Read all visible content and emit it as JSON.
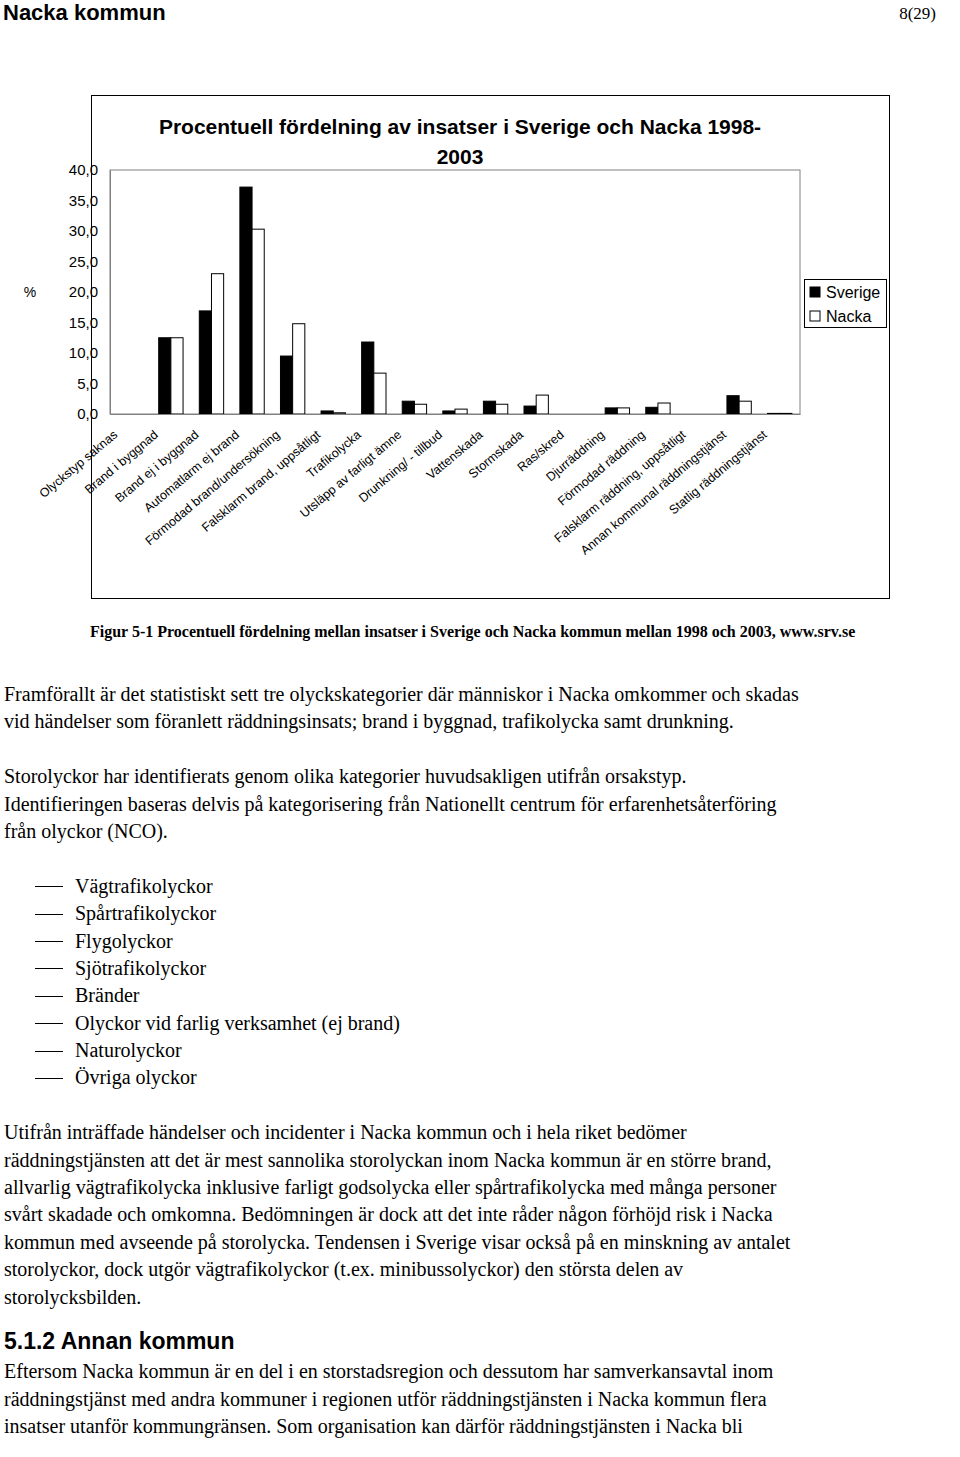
{
  "header": {
    "title": "Nacka kommun",
    "page": "8(29)"
  },
  "chart_data": {
    "type": "bar",
    "title": "Procentuell fördelning av insatser i Sverige och Nacka 1998-2003",
    "y_label": "%",
    "categories": [
      "Olyckstyp saknas",
      "Brand i byggnad",
      "Brand ej i byggnad",
      "Automatlarm ej brand",
      "Förmodad brand/undersökning",
      "Falsklarm brand, uppsåtligt",
      "Trafikolycka",
      "Utsläpp av farligt ämne",
      "Drunkning/ - tillbud",
      "Vattenskada",
      "Stormskada",
      "Ras/skred",
      "Djurräddning",
      "Förmodad räddning",
      "Falsklarm räddning, uppsåtligt",
      "Annan kommunal räddningstjänst",
      "Statlig räddningstjänst"
    ],
    "series": [
      {
        "name": "Sverige",
        "color": "#000000",
        "values": [
          0,
          12.5,
          16.9,
          37.2,
          9.5,
          0.5,
          11.8,
          2.1,
          0.5,
          2.1,
          1.3,
          0,
          1.0,
          1.1,
          0,
          3.0,
          0.1
        ]
      },
      {
        "name": "Nacka",
        "color": "#ffffff",
        "values": [
          0,
          12.5,
          23.0,
          30.3,
          14.8,
          0.2,
          6.7,
          1.6,
          0.8,
          1.6,
          3.1,
          0,
          1.0,
          1.8,
          0,
          2.1,
          0.1
        ]
      }
    ],
    "ylim": [
      0,
      40
    ],
    "yticks": [
      {
        "value": 0,
        "label": "0,0"
      },
      {
        "value": 5,
        "label": "5,0"
      },
      {
        "value": 10,
        "label": "10,0"
      },
      {
        "value": 15,
        "label": "15,0"
      },
      {
        "value": 20,
        "label": "20,0"
      },
      {
        "value": 25,
        "label": "25,0"
      },
      {
        "value": 30,
        "label": "30,0"
      },
      {
        "value": 35,
        "label": "35,0"
      },
      {
        "value": 40,
        "label": "40,0"
      }
    ],
    "legend": "right"
  },
  "caption": "Figur 5-1 Procentuell fördelning mellan insatser i Sverige och Nacka kommun mellan 1998 och 2003, www.srv.se",
  "body": [
    {
      "type": "paragraph",
      "lines": [
        "Framförallt är det statistiskt sett tre olyckskategorier där människor i Nacka omkommer och skadas",
        "vid händelser som föranlett räddningsinsats; brand i byggnad, trafikolycka samt drunkning."
      ]
    },
    {
      "type": "paragraph",
      "lines": [
        "Storolyckor har identifierats genom olika kategorier huvudsakligen utifrån orsakstyp.",
        "Identifieringen baseras delvis på kategorisering från Nationellt centrum för erfarenhetsåterföring",
        "från olyckor (NCO)."
      ]
    },
    {
      "type": "list",
      "items": [
        "Vägtrafikolyckor",
        "Spårtrafikolyckor",
        "Flygolyckor",
        "Sjötrafikolyckor",
        "Bränder",
        "Olyckor vid farlig verksamhet (ej brand)",
        "Naturolyckor",
        "Övriga olyckor"
      ]
    },
    {
      "type": "paragraph",
      "lines": [
        "Utifrån inträffade händelser och incidenter i Nacka kommun och i hela riket bedömer",
        "räddningstjänsten att det är mest sannolika storolyckan inom Nacka kommun är en större brand,",
        "allvarlig vägtrafikolycka inklusive farligt godsolycka eller spårtrafikolycka med många personer",
        "svårt skadade och omkomna. Bedömningen är dock att det inte råder någon förhöjd risk i Nacka",
        "kommun med avseende på storolycka. Tendensen i Sverige visar också på en minskning av antalet",
        "storolyckor, dock utgör vägtrafikolyckor (t.ex. minibussolyckor) den största delen av",
        "storolycksbilden."
      ]
    },
    {
      "type": "heading",
      "text": "5.1.2 Annan kommun"
    },
    {
      "type": "paragraph",
      "lines": [
        "Eftersom Nacka kommun är en del i en storstadsregion och dessutom har samverkansavtal inom",
        "räddningstjänst med andra kommuner i regionen utför räddningstjänsten i Nacka kommun flera",
        "insatser utanför kommungränsen. Som organisation kan därför räddningstjänsten i Nacka bli"
      ]
    }
  ]
}
